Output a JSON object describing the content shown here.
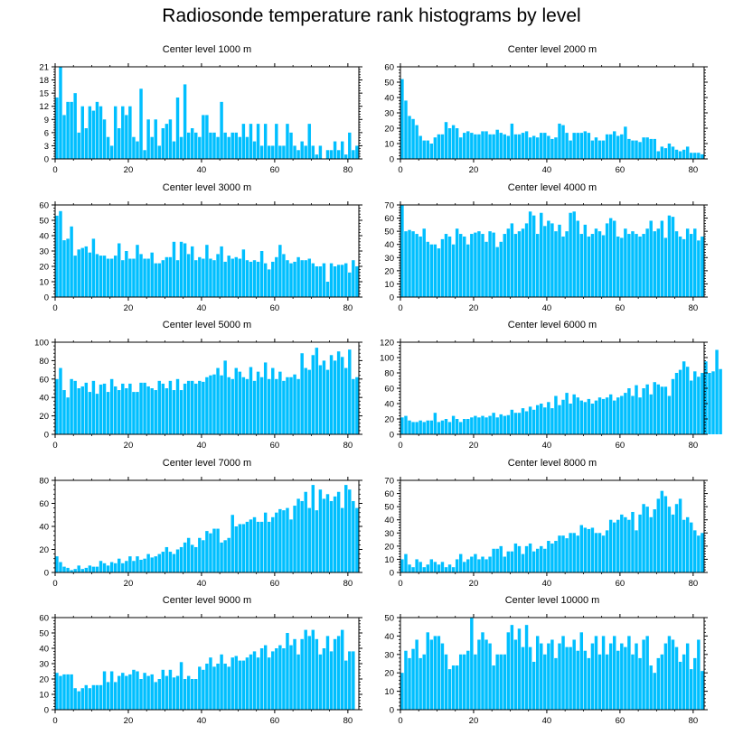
{
  "title": "Radiosonde temperature rank histograms by level",
  "bar_color": "#00bfff",
  "chart_data": [
    {
      "type": "bar",
      "title": "Center level 1000 m",
      "xlim": [
        0,
        83
      ],
      "ylim": [
        0,
        21
      ],
      "yticks": [
        0,
        3,
        6,
        9,
        12,
        15,
        18,
        21
      ],
      "xticks": [
        0,
        20,
        40,
        60,
        80
      ],
      "values": [
        14,
        21,
        10,
        13,
        13,
        15,
        6,
        12,
        7,
        12,
        11,
        13,
        12,
        9,
        5,
        3,
        12,
        7,
        12,
        10,
        12,
        5,
        4,
        16,
        2,
        9,
        5,
        9,
        3,
        7,
        8,
        9,
        4,
        14,
        5,
        17,
        6,
        7,
        6,
        5,
        10,
        10,
        6,
        6,
        5,
        13,
        6,
        5,
        6,
        6,
        5,
        8,
        5,
        8,
        4,
        8,
        3,
        8,
        3,
        3,
        8,
        3,
        3,
        8,
        6,
        3,
        2,
        4,
        3,
        8,
        3,
        1,
        3,
        0,
        2,
        2,
        4,
        2,
        4,
        1,
        6,
        2,
        3
      ]
    },
    {
      "type": "bar",
      "title": "Center level 2000 m",
      "xlim": [
        0,
        83
      ],
      "ylim": [
        0,
        60
      ],
      "yticks": [
        0,
        10,
        20,
        30,
        40,
        50,
        60
      ],
      "xticks": [
        0,
        20,
        40,
        60,
        80
      ],
      "values": [
        52,
        38,
        28,
        26,
        22,
        15,
        12,
        12,
        10,
        14,
        16,
        16,
        24,
        20,
        22,
        20,
        14,
        17,
        18,
        17,
        16,
        16,
        18,
        18,
        16,
        16,
        19,
        17,
        16,
        15,
        23,
        16,
        16,
        17,
        18,
        14,
        15,
        14,
        17,
        17,
        15,
        13,
        14,
        23,
        22,
        17,
        12,
        17,
        17,
        17,
        18,
        17,
        12,
        14,
        12,
        12,
        16,
        16,
        18,
        15,
        16,
        21,
        13,
        12,
        12,
        11,
        14,
        14,
        13,
        13,
        5,
        8,
        7,
        10,
        8,
        6,
        5,
        6,
        8,
        4,
        4,
        4,
        3
      ]
    },
    {
      "type": "bar",
      "title": "Center level 3000 m",
      "xlim": [
        0,
        83
      ],
      "ylim": [
        0,
        60
      ],
      "yticks": [
        0,
        10,
        20,
        30,
        40,
        50,
        60
      ],
      "xticks": [
        0,
        20,
        40,
        60,
        80
      ],
      "values": [
        53,
        56,
        37,
        38,
        46,
        27,
        31,
        32,
        33,
        29,
        38,
        28,
        27,
        27,
        25,
        25,
        27,
        35,
        24,
        30,
        25,
        25,
        34,
        28,
        25,
        25,
        29,
        22,
        22,
        24,
        26,
        26,
        36,
        24,
        36,
        35,
        28,
        33,
        24,
        26,
        25,
        34,
        25,
        24,
        28,
        33,
        23,
        27,
        25,
        26,
        25,
        31,
        24,
        23,
        24,
        23,
        30,
        22,
        18,
        23,
        26,
        34,
        28,
        24,
        22,
        23,
        26,
        24,
        24,
        25,
        22,
        20,
        20,
        22,
        10,
        22,
        20,
        21,
        21,
        22,
        16,
        24,
        20
      ]
    },
    {
      "type": "bar",
      "title": "Center level 4000 m",
      "xlim": [
        0,
        83
      ],
      "ylim": [
        0,
        70
      ],
      "yticks": [
        0,
        10,
        20,
        30,
        40,
        50,
        60,
        70
      ],
      "xticks": [
        0,
        20,
        40,
        60,
        80
      ],
      "values": [
        70,
        50,
        51,
        50,
        48,
        46,
        52,
        42,
        40,
        40,
        37,
        44,
        48,
        46,
        40,
        52,
        48,
        46,
        40,
        48,
        49,
        50,
        48,
        42,
        50,
        49,
        38,
        42,
        48,
        52,
        56,
        48,
        50,
        52,
        56,
        65,
        62,
        48,
        64,
        54,
        58,
        56,
        50,
        55,
        46,
        50,
        64,
        65,
        58,
        48,
        55,
        46,
        48,
        52,
        50,
        47,
        56,
        60,
        58,
        46,
        45,
        52,
        48,
        50,
        48,
        46,
        48,
        52,
        58,
        50,
        52,
        58,
        45,
        62,
        61,
        50,
        46,
        44,
        52,
        48,
        52,
        43,
        46
      ]
    },
    {
      "type": "bar",
      "title": "Center level 5000 m",
      "xlim": [
        0,
        83
      ],
      "ylim": [
        0,
        100
      ],
      "yticks": [
        0,
        20,
        40,
        60,
        80,
        100
      ],
      "xticks": [
        0,
        20,
        40,
        60,
        80
      ],
      "values": [
        60,
        72,
        48,
        40,
        60,
        58,
        50,
        52,
        56,
        46,
        58,
        44,
        54,
        55,
        46,
        60,
        52,
        48,
        55,
        50,
        55,
        46,
        46,
        56,
        56,
        52,
        50,
        48,
        58,
        55,
        50,
        58,
        48,
        60,
        48,
        55,
        58,
        58,
        55,
        58,
        57,
        62,
        64,
        65,
        72,
        64,
        80,
        62,
        60,
        72,
        68,
        62,
        60,
        73,
        58,
        68,
        62,
        78,
        60,
        72,
        60,
        68,
        58,
        62,
        62,
        65,
        60,
        88,
        72,
        70,
        86,
        94,
        75,
        80,
        70,
        86,
        80,
        90,
        84,
        72,
        92,
        60,
        62
      ]
    },
    {
      "type": "bar",
      "title": "Center level 6000 m",
      "xlim": [
        0,
        83
      ],
      "ylim": [
        0,
        120
      ],
      "yticks": [
        0,
        20,
        40,
        60,
        80,
        100,
        120
      ],
      "xticks": [
        0,
        20,
        40,
        60,
        80
      ],
      "values": [
        22,
        24,
        18,
        16,
        16,
        18,
        16,
        18,
        18,
        28,
        16,
        18,
        20,
        16,
        24,
        20,
        16,
        20,
        20,
        22,
        24,
        22,
        24,
        22,
        24,
        28,
        22,
        26,
        24,
        25,
        32,
        28,
        28,
        34,
        30,
        36,
        32,
        38,
        40,
        35,
        42,
        34,
        50,
        38,
        45,
        54,
        40,
        52,
        48,
        44,
        42,
        46,
        40,
        44,
        48,
        46,
        48,
        52,
        44,
        48,
        50,
        54,
        60,
        50,
        64,
        48,
        60,
        65,
        52,
        68,
        65,
        62,
        62,
        50,
        72,
        80,
        84,
        95,
        88,
        70,
        82,
        75,
        80,
        95,
        80,
        82,
        110,
        85
      ]
    },
    {
      "type": "bar",
      "title": "Center level 7000 m",
      "xlim": [
        0,
        83
      ],
      "ylim": [
        0,
        80
      ],
      "yticks": [
        0,
        20,
        40,
        60,
        80
      ],
      "xticks": [
        0,
        20,
        40,
        60,
        80
      ],
      "values": [
        14,
        9,
        5,
        4,
        2,
        3,
        6,
        3,
        4,
        6,
        5,
        5,
        10,
        8,
        6,
        9,
        8,
        12,
        8,
        10,
        14,
        10,
        14,
        11,
        12,
        16,
        13,
        14,
        16,
        18,
        22,
        18,
        16,
        20,
        22,
        26,
        30,
        24,
        22,
        30,
        28,
        36,
        34,
        38,
        38,
        26,
        28,
        30,
        50,
        40,
        42,
        42,
        44,
        46,
        48,
        44,
        44,
        52,
        44,
        48,
        52,
        55,
        54,
        56,
        46,
        58,
        64,
        62,
        70,
        56,
        76,
        54,
        72,
        64,
        68,
        62,
        66,
        70,
        56,
        76,
        72,
        62,
        56
      ]
    },
    {
      "type": "bar",
      "title": "Center level 8000 m",
      "xlim": [
        0,
        83
      ],
      "ylim": [
        0,
        70
      ],
      "yticks": [
        0,
        10,
        20,
        30,
        40,
        50,
        60,
        70
      ],
      "xticks": [
        0,
        20,
        40,
        60,
        80
      ],
      "values": [
        10,
        14,
        6,
        4,
        10,
        8,
        4,
        6,
        10,
        8,
        6,
        8,
        4,
        6,
        4,
        10,
        14,
        8,
        10,
        12,
        14,
        10,
        12,
        10,
        12,
        18,
        18,
        20,
        12,
        16,
        16,
        22,
        20,
        14,
        20,
        22,
        16,
        18,
        20,
        18,
        24,
        22,
        24,
        28,
        28,
        26,
        30,
        30,
        28,
        36,
        34,
        33,
        34,
        30,
        30,
        28,
        32,
        40,
        38,
        40,
        44,
        42,
        40,
        46,
        32,
        44,
        52,
        50,
        42,
        48,
        56,
        62,
        58,
        50,
        44,
        52,
        56,
        40,
        42,
        38,
        32,
        28,
        30
      ]
    },
    {
      "type": "bar",
      "title": "Center level 9000 m",
      "xlim": [
        0,
        83
      ],
      "ylim": [
        0,
        60
      ],
      "yticks": [
        0,
        10,
        20,
        30,
        40,
        50,
        60
      ],
      "xticks": [
        0,
        20,
        40,
        60,
        80
      ],
      "values": [
        24,
        22,
        23,
        23,
        23,
        14,
        12,
        14,
        16,
        14,
        16,
        16,
        16,
        25,
        18,
        25,
        18,
        22,
        24,
        22,
        23,
        26,
        25,
        20,
        24,
        22,
        23,
        18,
        20,
        26,
        22,
        26,
        21,
        22,
        31,
        20,
        22,
        20,
        20,
        28,
        26,
        30,
        34,
        28,
        30,
        36,
        30,
        28,
        34,
        35,
        32,
        32,
        34,
        36,
        38,
        34,
        40,
        42,
        34,
        38,
        40,
        42,
        40,
        50,
        42,
        46,
        36,
        46,
        52,
        48,
        52,
        46,
        36,
        40,
        48,
        38,
        46,
        48,
        52,
        32,
        38,
        38
      ]
    },
    {
      "type": "bar",
      "title": "Center level 10000 m",
      "xlim": [
        0,
        83
      ],
      "ylim": [
        0,
        50
      ],
      "yticks": [
        0,
        10,
        20,
        30,
        40,
        50
      ],
      "xticks": [
        0,
        20,
        40,
        60,
        80
      ],
      "values": [
        20,
        32,
        28,
        33,
        38,
        28,
        30,
        42,
        38,
        40,
        40,
        36,
        30,
        22,
        24,
        24,
        30,
        30,
        32,
        50,
        30,
        38,
        42,
        38,
        36,
        24,
        30,
        30,
        30,
        42,
        46,
        38,
        44,
        34,
        46,
        34,
        26,
        40,
        36,
        30,
        36,
        38,
        28,
        36,
        40,
        34,
        34,
        38,
        32,
        42,
        32,
        28,
        36,
        40,
        30,
        40,
        30,
        36,
        40,
        32,
        36,
        34,
        40,
        30,
        36,
        28,
        38,
        40,
        24,
        20,
        28,
        30,
        36,
        40,
        38,
        34,
        26,
        30,
        36,
        22,
        28,
        38,
        21
      ]
    }
  ]
}
